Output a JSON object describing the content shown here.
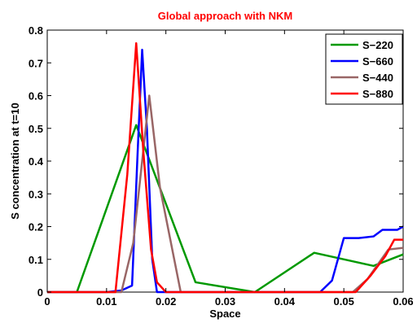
{
  "chart_data": {
    "type": "line",
    "title": "Global approach with NKM",
    "title_color": "#ff0000",
    "xlabel": "Space",
    "ylabel": "S concentration at t=10",
    "xlim": [
      0,
      0.06
    ],
    "ylim": [
      0,
      0.8
    ],
    "x_ticks": [
      "0",
      "0.01",
      "0.02",
      "0.03",
      "0.04",
      "0.05",
      "0.06"
    ],
    "y_ticks": [
      "0",
      "0.1",
      "0.2",
      "0.3",
      "0.4",
      "0.5",
      "0.6",
      "0.7",
      "0.8"
    ],
    "grid": false,
    "legend_position": "top-right",
    "series": [
      {
        "name": "S−220",
        "color": "#009900",
        "points": [
          [
            0,
            0
          ],
          [
            0.005,
            0
          ],
          [
            0.015,
            0.51
          ],
          [
            0.025,
            0.03
          ],
          [
            0.035,
            0
          ],
          [
            0.045,
            0.12
          ],
          [
            0.055,
            0.08
          ],
          [
            0.06,
            0.115
          ]
        ]
      },
      {
        "name": "S−660",
        "color": "#0000ff",
        "points": [
          [
            0,
            0
          ],
          [
            0.01,
            0
          ],
          [
            0.0125,
            0.005
          ],
          [
            0.0143,
            0.02
          ],
          [
            0.0152,
            0.41
          ],
          [
            0.016,
            0.74
          ],
          [
            0.0168,
            0.5
          ],
          [
            0.0177,
            0.1
          ],
          [
            0.0185,
            0
          ],
          [
            0.046,
            0
          ],
          [
            0.048,
            0.035
          ],
          [
            0.05,
            0.165
          ],
          [
            0.0525,
            0.165
          ],
          [
            0.055,
            0.17
          ],
          [
            0.0565,
            0.19
          ],
          [
            0.059,
            0.19
          ],
          [
            0.06,
            0.2
          ]
        ]
      },
      {
        "name": "S−440",
        "color": "#996666",
        "points": [
          [
            0,
            0
          ],
          [
            0.0125,
            0
          ],
          [
            0.0145,
            0.15
          ],
          [
            0.016,
            0.4
          ],
          [
            0.0172,
            0.6
          ],
          [
            0.019,
            0.32
          ],
          [
            0.0225,
            0
          ],
          [
            0.0515,
            0
          ],
          [
            0.054,
            0.04
          ],
          [
            0.0575,
            0.13
          ],
          [
            0.06,
            0.135
          ]
        ]
      },
      {
        "name": "S−880",
        "color": "#ff0000",
        "points": [
          [
            0,
            0
          ],
          [
            0.0115,
            0
          ],
          [
            0.0135,
            0.36
          ],
          [
            0.015,
            0.76
          ],
          [
            0.0162,
            0.43
          ],
          [
            0.0175,
            0.13
          ],
          [
            0.0185,
            0.03
          ],
          [
            0.02,
            0
          ],
          [
            0.052,
            0
          ],
          [
            0.0545,
            0.05
          ],
          [
            0.057,
            0.11
          ],
          [
            0.0585,
            0.16
          ],
          [
            0.06,
            0.16
          ]
        ]
      }
    ]
  }
}
